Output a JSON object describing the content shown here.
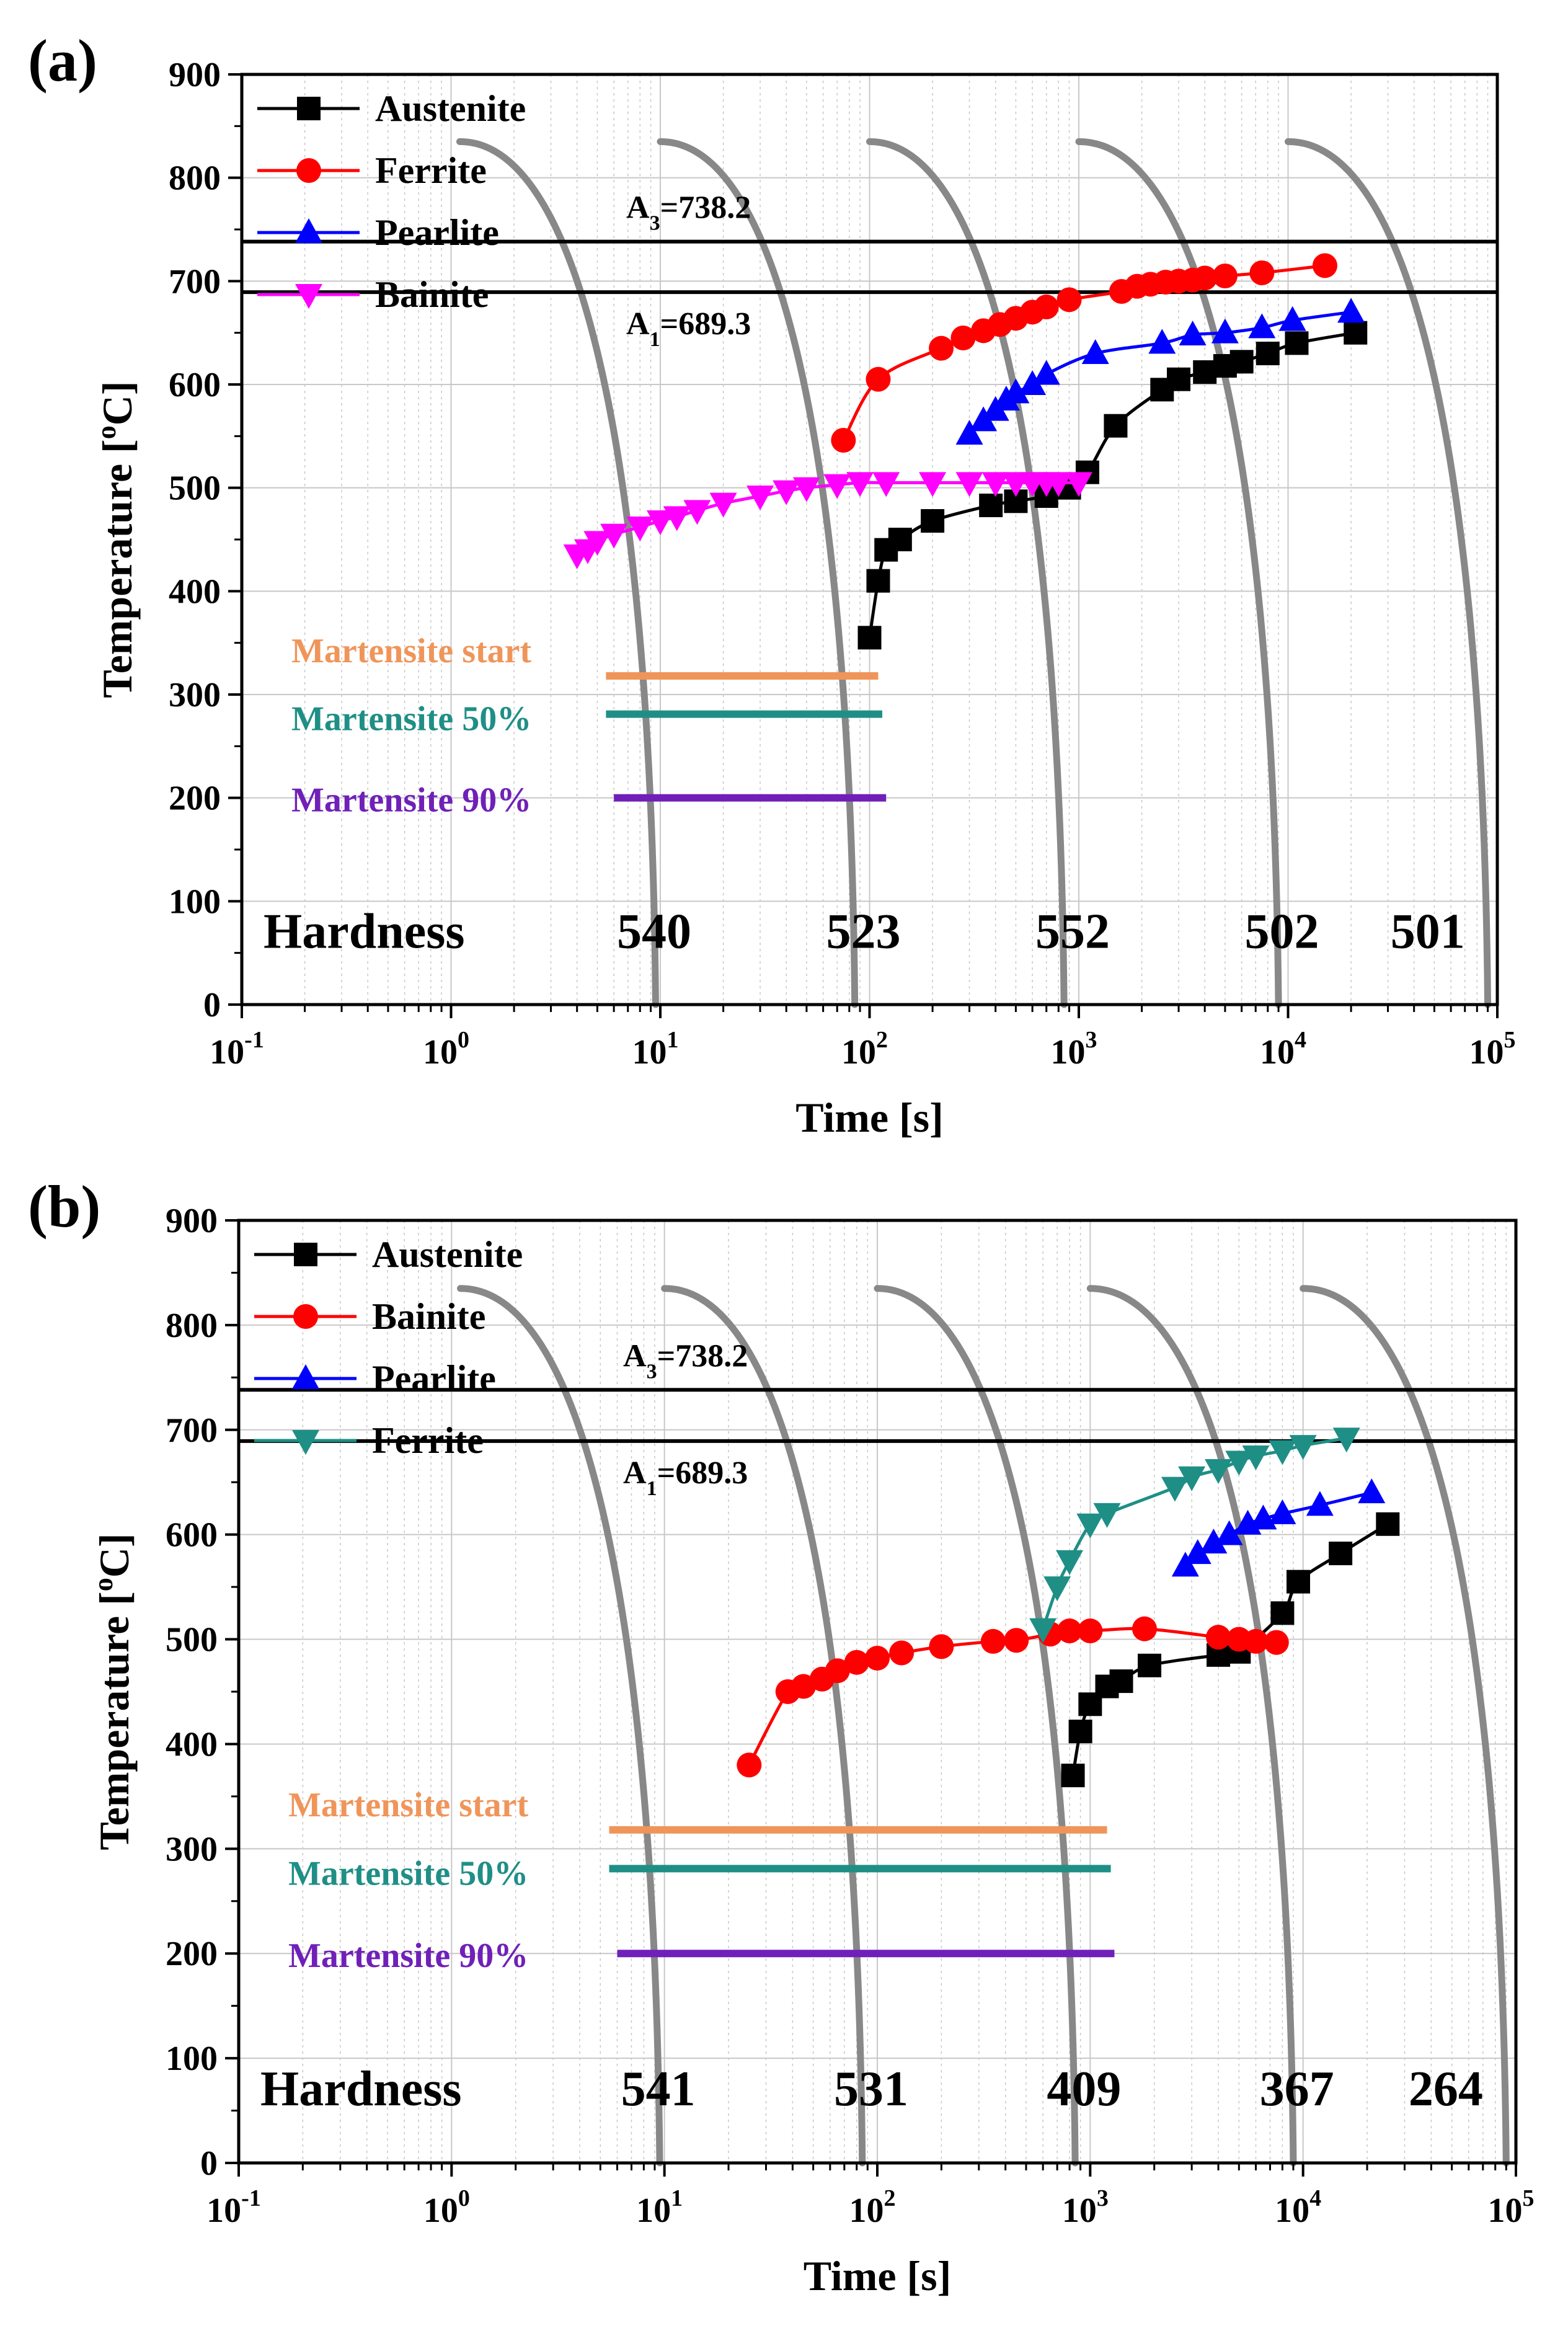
{
  "chart_data": [
    {
      "type": "line",
      "panel_label": "(a)",
      "xlabel": "Time [s]",
      "ylabel": "Temperature [°C]",
      "ylabel_parts": {
        "before": "Temperature [",
        "sup": "o",
        "after": "C]"
      },
      "xscale": "log",
      "xlim": [
        0.1,
        100000
      ],
      "ylim": [
        0,
        900
      ],
      "x_ticks": [
        {
          "base": "10",
          "exp": "-1",
          "value": 0.1
        },
        {
          "base": "10",
          "exp": "0",
          "value": 1
        },
        {
          "base": "10",
          "exp": "1",
          "value": 10
        },
        {
          "base": "10",
          "exp": "2",
          "value": 100
        },
        {
          "base": "10",
          "exp": "3",
          "value": 1000
        },
        {
          "base": "10",
          "exp": "4",
          "value": 10000
        },
        {
          "base": "10",
          "exp": "5",
          "value": 100000
        }
      ],
      "y_ticks": [
        "0",
        "100",
        "200",
        "300",
        "400",
        "500",
        "600",
        "700",
        "800",
        "900"
      ],
      "legend_position": "top-left",
      "legend": [
        "Austenite",
        "Ferrite",
        "Pearlite",
        "Bainite"
      ],
      "series": [
        {
          "name": "Austenite",
          "color": "#000000",
          "marker": "square",
          "x": [
            100,
            110,
            120,
            140,
            200,
            380,
            500,
            700,
            900,
            1100,
            1500,
            2500,
            3000,
            4000,
            5000,
            6000,
            8000,
            11000,
            21000
          ],
          "y": [
            355,
            410,
            440,
            450,
            468,
            483,
            487,
            492,
            500,
            515,
            560,
            595,
            605,
            612,
            618,
            622,
            630,
            640,
            650
          ]
        },
        {
          "name": "Ferrite",
          "color": "#ff0000",
          "marker": "circle",
          "x": [
            75,
            110,
            220,
            280,
            350,
            420,
            500,
            600,
            700,
            900,
            1600,
            1900,
            2200,
            2600,
            3000,
            3500,
            4000,
            5000,
            7500,
            15000
          ],
          "y": [
            546,
            605,
            635,
            645,
            652,
            658,
            664,
            670,
            675,
            682,
            690,
            695,
            697,
            699,
            700,
            701,
            703,
            705,
            708,
            715
          ]
        },
        {
          "name": "Pearlite",
          "color": "#0000ff",
          "marker": "triangle-up",
          "x": [
            300,
            350,
            400,
            450,
            500,
            600,
            700,
            1200,
            2500,
            3500,
            5000,
            7500,
            10500,
            20000
          ],
          "y": [
            552,
            565,
            575,
            585,
            592,
            600,
            610,
            630,
            640,
            648,
            650,
            655,
            662,
            670
          ]
        },
        {
          "name": "Bainite",
          "color": "#ff00ff",
          "marker": "triangle-down",
          "x": [
            4,
            4.5,
            5,
            6,
            8,
            10,
            12,
            15,
            20,
            30,
            40,
            50,
            70,
            90,
            120,
            200,
            300,
            400,
            500,
            600,
            700,
            800,
            1000
          ],
          "y": [
            435,
            440,
            448,
            455,
            462,
            468,
            472,
            478,
            485,
            492,
            497,
            500,
            503,
            505,
            505,
            505,
            505,
            505,
            505,
            505,
            505,
            505,
            505
          ]
        }
      ],
      "critical_lines": [
        {
          "label_base": "A",
          "label_sub": "3",
          "label_value": "=738.2",
          "value": 738.2
        },
        {
          "label_base": "A",
          "label_sub": "1",
          "label_value": "=689.3",
          "value": 689.3
        }
      ],
      "martensite": [
        {
          "label": "Martensite start",
          "value": 318,
          "color": "#f0955a",
          "x_start": 5.5,
          "x_end": 110
        },
        {
          "label": "Martensite 50%",
          "value": 281,
          "color": "#1f8f86",
          "x_start": 5.5,
          "x_end": 115
        },
        {
          "label": "Martensite 90%",
          "value": 200,
          "color": "#7020b8",
          "x_start": 6,
          "x_end": 120
        }
      ],
      "cooling_curves": [
        {
          "x_top": 1.1,
          "y_top": 835,
          "x_bottom": 9.5,
          "y_bottom": 0
        },
        {
          "x_top": 10,
          "y_top": 835,
          "x_bottom": 85,
          "y_bottom": 0
        },
        {
          "x_top": 100,
          "y_top": 835,
          "x_bottom": 850,
          "y_bottom": 0
        },
        {
          "x_top": 1000,
          "y_top": 835,
          "x_bottom": 9000,
          "y_bottom": 0
        },
        {
          "x_top": 10000,
          "y_top": 835,
          "x_bottom": 90000,
          "y_bottom": 0
        }
      ],
      "hardness_label": "Hardness",
      "hardness": [
        {
          "value": "540",
          "x": 10
        },
        {
          "value": "523",
          "x": 100
        },
        {
          "value": "552",
          "x": 1000
        },
        {
          "value": "502",
          "x": 10000
        },
        {
          "value": "501",
          "x": 70000
        }
      ]
    },
    {
      "type": "line",
      "panel_label": "(b)",
      "xlabel": "Time [s]",
      "ylabel": "Temperature [°C]",
      "ylabel_parts": {
        "before": "Temperature [",
        "sup": "o",
        "after": "C]"
      },
      "xscale": "log",
      "xlim": [
        0.1,
        100000
      ],
      "ylim": [
        0,
        900
      ],
      "x_ticks": [
        {
          "base": "10",
          "exp": "-1",
          "value": 0.1
        },
        {
          "base": "10",
          "exp": "0",
          "value": 1
        },
        {
          "base": "10",
          "exp": "1",
          "value": 10
        },
        {
          "base": "10",
          "exp": "2",
          "value": 100
        },
        {
          "base": "10",
          "exp": "3",
          "value": 1000
        },
        {
          "base": "10",
          "exp": "4",
          "value": 10000
        },
        {
          "base": "10",
          "exp": "5",
          "value": 100000
        }
      ],
      "y_ticks": [
        "0",
        "100",
        "200",
        "300",
        "400",
        "500",
        "600",
        "700",
        "800",
        "900"
      ],
      "legend_position": "top-left",
      "legend": [
        "Austenite",
        "Bainite",
        "Pearlite",
        "Ferrite"
      ],
      "series": [
        {
          "name": "Austenite",
          "color": "#000000",
          "marker": "square",
          "x": [
            830,
            900,
            1000,
            1200,
            1400,
            1900,
            4000,
            5000,
            8000,
            9500,
            15000,
            25000
          ],
          "y": [
            370,
            412,
            438,
            455,
            460,
            475,
            485,
            488,
            525,
            555,
            582,
            610
          ]
        },
        {
          "name": "Bainite",
          "color": "#ff0000",
          "marker": "circle",
          "x": [
            25,
            38,
            45,
            55,
            65,
            80,
            100,
            130,
            200,
            350,
            450,
            650,
            800,
            1000,
            1800,
            4000,
            5000,
            6000,
            7500
          ],
          "y": [
            380,
            450,
            455,
            462,
            470,
            478,
            482,
            487,
            493,
            498,
            499,
            505,
            508,
            508,
            510,
            502,
            500,
            498,
            497
          ]
        },
        {
          "name": "Pearlite",
          "color": "#0000ff",
          "marker": "triangle-up",
          "x": [
            2800,
            3200,
            3800,
            4500,
            5500,
            6500,
            8000,
            12000,
            21000
          ],
          "y": [
            570,
            582,
            592,
            600,
            610,
            615,
            620,
            628,
            640
          ]
        },
        {
          "name": "Ferrite",
          "color": "#1f8f86",
          "marker": "triangle-down",
          "x": [
            600,
            700,
            800,
            1000,
            1200,
            2500,
            3000,
            4000,
            5000,
            6000,
            8000,
            10000,
            16000
          ],
          "y": [
            510,
            550,
            575,
            610,
            620,
            645,
            655,
            662,
            670,
            675,
            680,
            685,
            692
          ]
        }
      ],
      "critical_lines": [
        {
          "label_base": "A",
          "label_sub": "3",
          "label_value": "=738.2",
          "value": 738.2
        },
        {
          "label_base": "A",
          "label_sub": "1",
          "label_value": "=689.3",
          "value": 689.3
        }
      ],
      "martensite": [
        {
          "label": "Martensite start",
          "value": 318,
          "color": "#f0955a",
          "x_start": 5.5,
          "x_end": 1200
        },
        {
          "label": "Martensite 50%",
          "value": 281,
          "color": "#1f8f86",
          "x_start": 5.5,
          "x_end": 1250
        },
        {
          "label": "Martensite 90%",
          "value": 200,
          "color": "#7020b8",
          "x_start": 6,
          "x_end": 1300
        }
      ],
      "cooling_curves": [
        {
          "x_top": 1.1,
          "y_top": 835,
          "x_bottom": 9.5,
          "y_bottom": 0
        },
        {
          "x_top": 10,
          "y_top": 835,
          "x_bottom": 85,
          "y_bottom": 0
        },
        {
          "x_top": 100,
          "y_top": 835,
          "x_bottom": 850,
          "y_bottom": 0
        },
        {
          "x_top": 1000,
          "y_top": 835,
          "x_bottom": 9000,
          "y_bottom": 0
        },
        {
          "x_top": 10000,
          "y_top": 835,
          "x_bottom": 90000,
          "y_bottom": 0
        }
      ],
      "hardness_label": "Hardness",
      "hardness": [
        {
          "value": "541",
          "x": 10
        },
        {
          "value": "531",
          "x": 100
        },
        {
          "value": "409",
          "x": 1000
        },
        {
          "value": "367",
          "x": 10000
        },
        {
          "value": "264",
          "x": 70000
        }
      ]
    }
  ]
}
